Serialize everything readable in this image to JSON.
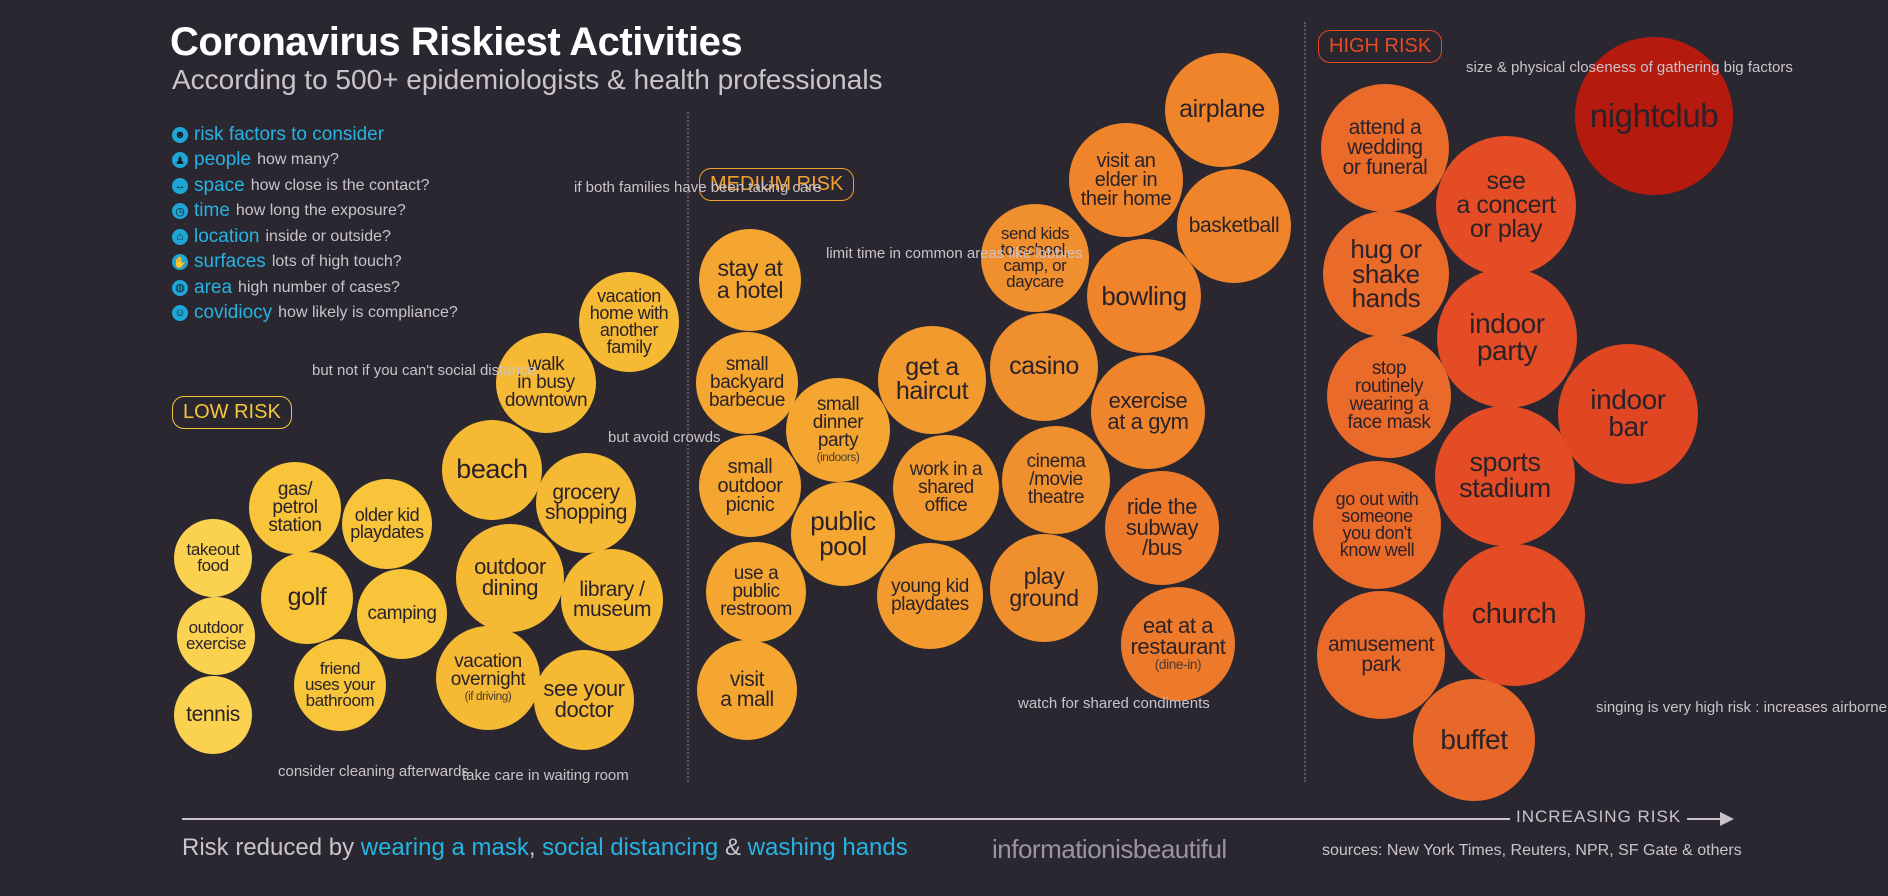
{
  "header": {
    "title": "Coronavirus Riskiest Activities",
    "subtitle": "According to 500+ epidemiologists & health professionals"
  },
  "risk_factors": {
    "heading": "risk factors to consider",
    "items": [
      {
        "name": "people",
        "desc": "how many?",
        "icon": "people-icon"
      },
      {
        "name": "space",
        "desc": "how close is the contact?",
        "icon": "space-icon"
      },
      {
        "name": "time",
        "desc": "how long the exposure?",
        "icon": "clock-icon"
      },
      {
        "name": "location",
        "desc": "inside or outside?",
        "icon": "location-icon"
      },
      {
        "name": "surfaces",
        "desc": "lots of high touch?",
        "icon": "hand-icon"
      },
      {
        "name": "area",
        "desc": "high number of cases?",
        "icon": "globe-icon"
      },
      {
        "name": "covidiocy",
        "desc": "how likely is compliance?",
        "icon": "head-icon"
      }
    ]
  },
  "zones": {
    "low": "LOW RISK",
    "medium": "MEDIUM RISK",
    "high": "HIGH RISK"
  },
  "colors": {
    "background": "#2a2730",
    "accent": "#26b3e3",
    "low": "#f7c53b",
    "medium": "#f4a02e",
    "high": "#e54a25",
    "top": "#b51a0e"
  },
  "activities": [
    {
      "id": "takeout-food",
      "label": "takeout food",
      "color": "#fbd24f"
    },
    {
      "id": "outdoor-exercise",
      "label": "outdoor exercise",
      "color": "#fbd24f"
    },
    {
      "id": "tennis",
      "label": "tennis",
      "color": "#fbd24f"
    },
    {
      "id": "gas-station",
      "label": "gas/ petrol station",
      "color": "#f8c43a"
    },
    {
      "id": "golf",
      "label": "golf",
      "color": "#f8c43a"
    },
    {
      "id": "older-kid-playdates",
      "label": "older kid playdates",
      "color": "#f8c43a"
    },
    {
      "id": "camping",
      "label": "camping",
      "color": "#f8c43a"
    },
    {
      "id": "friend-bathroom",
      "label": "friend uses your bathroom",
      "color": "#f8c43a"
    },
    {
      "id": "beach",
      "label": "beach",
      "color": "#f6b934"
    },
    {
      "id": "walk-downtown",
      "label": "walk in busy downtown",
      "color": "#f6b934"
    },
    {
      "id": "vacation-home",
      "label": "vacation home with another family",
      "color": "#f6b934"
    },
    {
      "id": "grocery-shopping",
      "label": "grocery shopping",
      "color": "#f6b934"
    },
    {
      "id": "outdoor-dining",
      "label": "outdoor dining",
      "color": "#f6b934"
    },
    {
      "id": "library-museum",
      "label": "library / museum",
      "color": "#f6b934"
    },
    {
      "id": "vacation-overnight",
      "label": "vacation overnight",
      "sub": "(if driving)",
      "color": "#f6b934"
    },
    {
      "id": "see-your-doctor",
      "label": "see your doctor",
      "color": "#f6b934"
    },
    {
      "id": "stay-at-hotel",
      "label": "stay at a hotel",
      "color": "#f4a631"
    },
    {
      "id": "small-backyard-barbecue",
      "label": "small backyard barbecue",
      "color": "#f4a631"
    },
    {
      "id": "small-dinner-party",
      "label": "small dinner party",
      "sub": "(indoors)",
      "color": "#f4a631"
    },
    {
      "id": "small-outdoor-picnic",
      "label": "small outdoor picnic",
      "color": "#f4a631"
    },
    {
      "id": "public-pool",
      "label": "public pool",
      "color": "#f4a631"
    },
    {
      "id": "use-public-restroom",
      "label": "use a public restroom",
      "color": "#f4a631"
    },
    {
      "id": "visit-a-mall",
      "label": "visit a mall",
      "color": "#f4a631"
    },
    {
      "id": "get-a-haircut",
      "label": "get a haircut",
      "color": "#f29a2e"
    },
    {
      "id": "work-shared-office",
      "label": "work in a shared office",
      "color": "#f29a2e"
    },
    {
      "id": "young-kid-playdates",
      "label": "young kid playdates",
      "color": "#f29a2e"
    },
    {
      "id": "send-kids-school",
      "label": "send kids to school, camp, or daycare",
      "color": "#f08f2d"
    },
    {
      "id": "casino",
      "label": "casino",
      "color": "#f08f2d"
    },
    {
      "id": "cinema",
      "label": "cinema /movie theatre",
      "color": "#f08f2d"
    },
    {
      "id": "play-ground",
      "label": "play ground",
      "color": "#f08f2d"
    },
    {
      "id": "visit-elder",
      "label": "visit an elder in their home",
      "color": "#ef842b"
    },
    {
      "id": "airplane",
      "label": "airplane",
      "color": "#ef842b"
    },
    {
      "id": "basketball",
      "label": "basketball",
      "color": "#ef842b"
    },
    {
      "id": "bowling",
      "label": "bowling",
      "color": "#ef842b"
    },
    {
      "id": "exercise-gym",
      "label": "exercise at a gym",
      "color": "#ef842b"
    },
    {
      "id": "ride-subway",
      "label": "ride the subway /bus",
      "color": "#ed7a2a"
    },
    {
      "id": "eat-restaurant",
      "label": "eat at a restaurant",
      "sub": "(dine-in)",
      "color": "#ed7a2a"
    },
    {
      "id": "attend-wedding",
      "label": "attend a wedding or funeral",
      "color": "#ea6a2a"
    },
    {
      "id": "hug-shake-hands",
      "label": "hug or shake hands",
      "color": "#ea6a2a"
    },
    {
      "id": "stop-wearing-mask",
      "label": "stop routinely wearing a face mask",
      "color": "#ea6a2a"
    },
    {
      "id": "go-out-with-someone",
      "label": "go out with someone you don't know well",
      "color": "#ea6a2a"
    },
    {
      "id": "amusement-park",
      "label": "amusement park",
      "color": "#ea6a2a"
    },
    {
      "id": "buffet",
      "label": "buffet",
      "color": "#e86829"
    },
    {
      "id": "see-concert",
      "label": "see a concert or play",
      "color": "#e44c25"
    },
    {
      "id": "indoor-party",
      "label": "indoor party",
      "color": "#e44c25"
    },
    {
      "id": "sports-stadium",
      "label": "sports stadium",
      "color": "#e44c25"
    },
    {
      "id": "church",
      "label": "church",
      "color": "#e44c25"
    },
    {
      "id": "indoor-bar",
      "label": "indoor bar",
      "color": "#e04622"
    },
    {
      "id": "nightclub",
      "label": "nightclub",
      "color": "#b51a0e"
    }
  ],
  "notes": {
    "both_families": "if both families have been taking care",
    "not_social_distance": "but not if you can't social distance",
    "avoid_crowds": "but avoid crowds",
    "cleaning": "consider cleaning afterwards",
    "waiting_room": "take care in waiting room",
    "limit_time": "limit time in common areas like lobbies",
    "shared_condiments": "watch for shared condiments",
    "size_closeness": "size & physical closeness of gathering big factors",
    "singing": "singing is very high risk : increases airborne viral spread"
  },
  "axis": {
    "label": "INCREASING RISK"
  },
  "footer": {
    "prefix": "Risk reduced by",
    "mask": "wearing a mask",
    "sep1": ",",
    "distancing": "social distancing",
    "sep2": "&",
    "hands": "washing hands",
    "brand": "informationisbeautiful",
    "sources": "sources: New York Times, Reuters, NPR, SF Gate & others"
  }
}
